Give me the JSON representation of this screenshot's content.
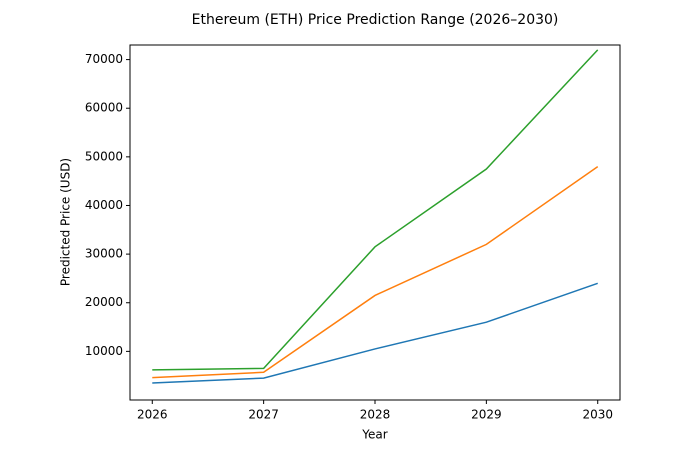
{
  "chart_data": {
    "type": "line",
    "title": "Ethereum (ETH) Price Prediction Range (2026–2030)",
    "x_label": "Year",
    "y_label": "Predicted Price (USD)",
    "x": [
      2026,
      2027,
      2028,
      2029,
      2030
    ],
    "series": [
      {
        "color": "#1f77b4",
        "values": [
          3500,
          4500,
          10500,
          16000,
          24000
        ]
      },
      {
        "color": "#ff7f0e",
        "values": [
          4600,
          5700,
          21500,
          32000,
          48000
        ]
      },
      {
        "color": "#2ca02c",
        "values": [
          6200,
          6500,
          31500,
          47500,
          72000
        ]
      }
    ],
    "xlim": [
      2025.8,
      2030.2
    ],
    "xticks": [
      2026,
      2027,
      2028,
      2029,
      2030
    ],
    "ylim": [
      0,
      73000
    ],
    "yticks": [
      10000,
      20000,
      30000,
      40000,
      50000,
      60000,
      70000
    ],
    "grid": false
  }
}
